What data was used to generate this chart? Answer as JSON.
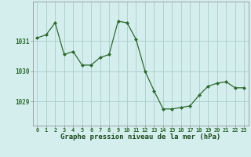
{
  "hours": [
    0,
    1,
    2,
    3,
    4,
    5,
    6,
    7,
    8,
    9,
    10,
    11,
    12,
    13,
    14,
    15,
    16,
    17,
    18,
    19,
    20,
    21,
    22,
    23
  ],
  "pressure": [
    1031.1,
    1031.2,
    1031.6,
    1030.55,
    1030.65,
    1030.2,
    1030.2,
    1030.45,
    1030.55,
    1031.65,
    1031.6,
    1031.05,
    1030.0,
    1029.35,
    1028.75,
    1028.75,
    1028.8,
    1028.85,
    1029.2,
    1029.5,
    1029.6,
    1029.65,
    1029.45,
    1029.45
  ],
  "line_color": "#2d6a2d",
  "marker_color": "#2d6a2d",
  "bg_color": "#d4eeee",
  "grid_color": "#aacccc",
  "xlabel": "Graphe pression niveau de la mer (hPa)",
  "xlabel_color": "#1a4a1a",
  "yticks": [
    1029,
    1030,
    1031
  ],
  "ylim": [
    1028.2,
    1032.3
  ],
  "xlim": [
    -0.5,
    23.5
  ],
  "tick_color": "#2d6a2d",
  "axis_color": "#888888"
}
